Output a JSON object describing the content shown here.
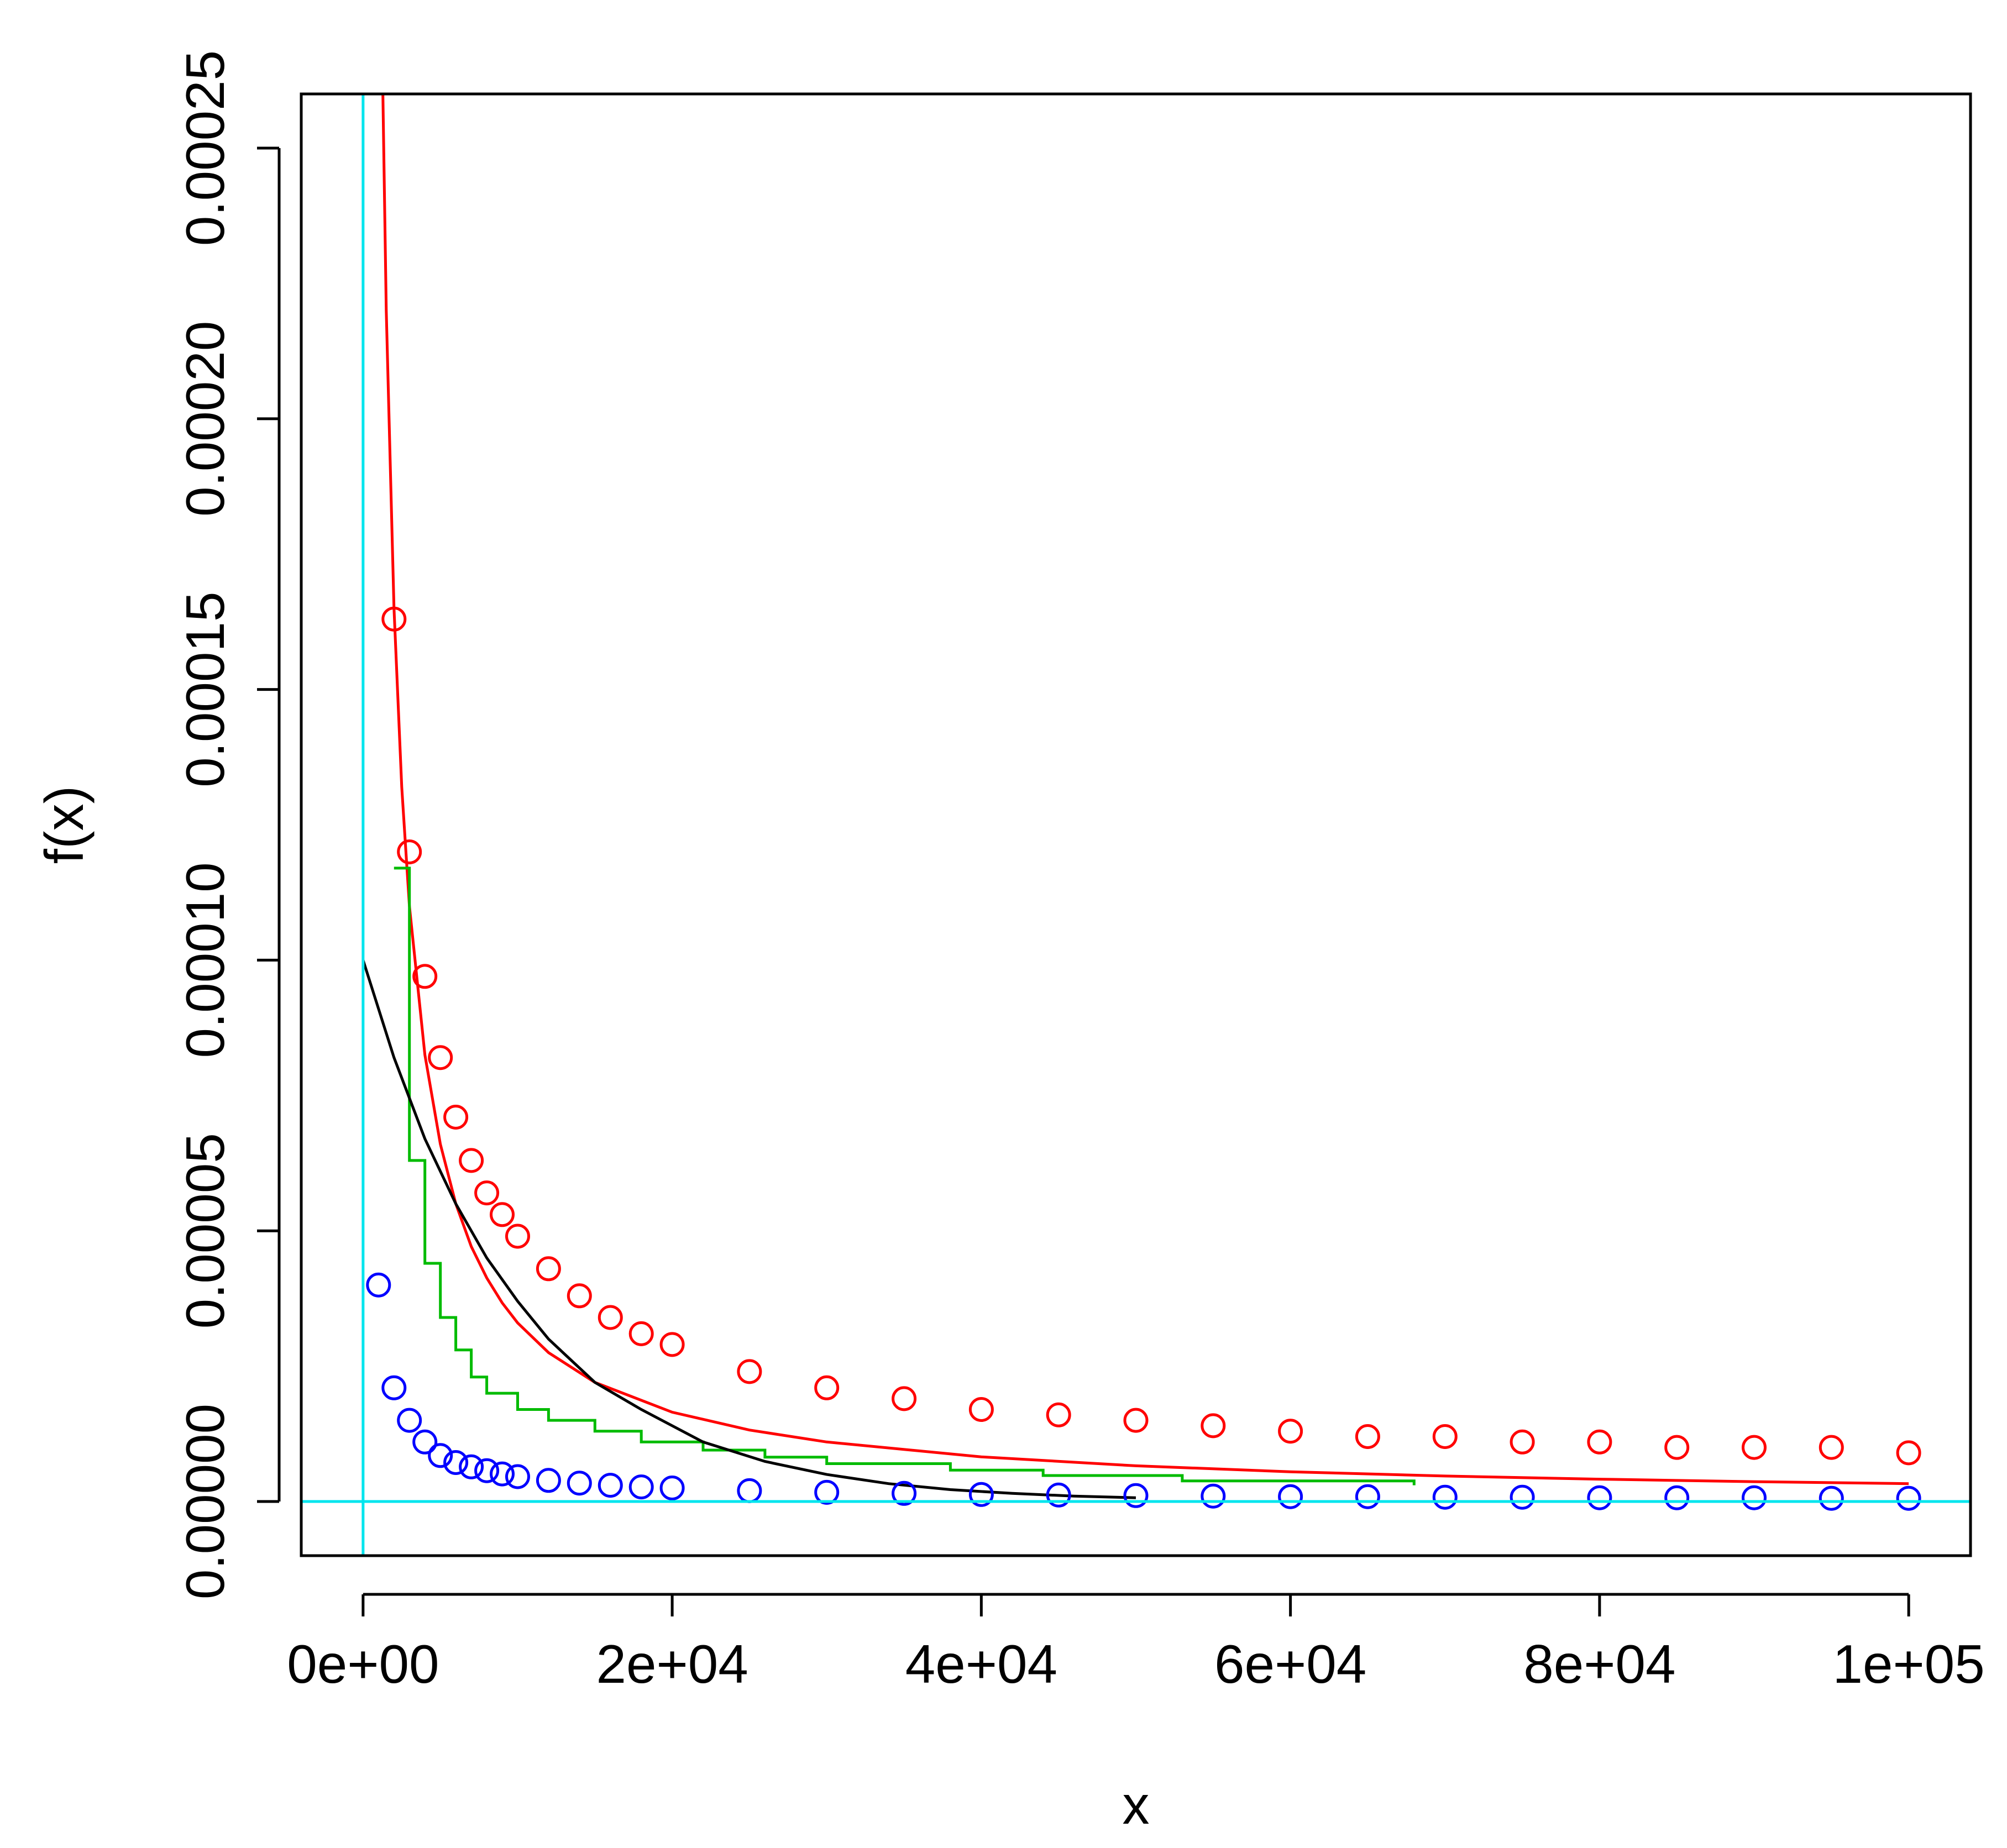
{
  "chart_data": {
    "type": "line",
    "title": "",
    "xlabel": "x",
    "ylabel": "f(x)",
    "xlim": [
      -4000,
      104000
    ],
    "ylim": [
      -1e-05,
      0.00026
    ],
    "x_ticks": [
      0,
      20000,
      40000,
      60000,
      80000,
      100000
    ],
    "x_tick_labels": [
      "0e+00",
      "2e+04",
      "4e+04",
      "6e+04",
      "8e+04",
      "1e+05"
    ],
    "y_ticks": [
      0,
      5e-05,
      0.0001,
      0.00015,
      0.0002,
      0.00025
    ],
    "y_tick_labels": [
      "0.00000",
      "0.00005",
      "0.00010",
      "0.00015",
      "0.00020",
      "0.00025"
    ],
    "grid": false,
    "legend": "none",
    "reference_lines": [
      {
        "orientation": "vertical",
        "value": 0,
        "color": "#00e5ee"
      },
      {
        "orientation": "horizontal",
        "value": 0,
        "color": "#00e5ee"
      }
    ],
    "series": [
      {
        "style": "line",
        "color": "#ff0000",
        "x": [
          1200,
          1500,
          2000,
          2500,
          3000,
          4000,
          5000,
          6000,
          7000,
          8000,
          9000,
          10000,
          12000,
          15000,
          20000,
          25000,
          30000,
          40000,
          50000,
          60000,
          70000,
          80000,
          90000,
          100000
        ],
        "values": [
          0.000275,
          0.00022,
          0.000165,
          0.000132,
          0.00011,
          8.25e-05,
          6.6e-05,
          5.5e-05,
          4.71e-05,
          4.13e-05,
          3.67e-05,
          3.3e-05,
          2.75e-05,
          2.2e-05,
          1.65e-05,
          1.32e-05,
          1.1e-05,
          8.25e-06,
          6.6e-06,
          5.5e-06,
          4.71e-06,
          4.13e-06,
          3.67e-06,
          3.3e-06
        ]
      },
      {
        "style": "points",
        "color": "#ff0000",
        "x": [
          2000,
          3000,
          4000,
          5000,
          6000,
          7000,
          8000,
          9000,
          10000,
          12000,
          14000,
          16000,
          18000,
          20000,
          25000,
          30000,
          35000,
          40000,
          45000,
          50000,
          55000,
          60000,
          65000,
          70000,
          75000,
          80000,
          85000,
          90000,
          95000,
          100000
        ],
        "values": [
          0.000163,
          0.00012,
          9.7e-05,
          8.2e-05,
          7.1e-05,
          6.3e-05,
          5.7e-05,
          5.3e-05,
          4.9e-05,
          4.3e-05,
          3.8e-05,
          3.4e-05,
          3.1e-05,
          2.9e-05,
          2.4e-05,
          2.1e-05,
          1.9e-05,
          1.7e-05,
          1.6e-05,
          1.5e-05,
          1.4e-05,
          1.3e-05,
          1.2e-05,
          1.2e-05,
          1.1e-05,
          1.1e-05,
          1e-05,
          1e-05,
          1e-05,
          9e-06
        ]
      },
      {
        "style": "step",
        "color": "#00bb00",
        "x": [
          2000,
          3000,
          4000,
          5000,
          6000,
          7000,
          8000,
          10000,
          12000,
          15000,
          18000,
          22000,
          26000,
          30000,
          38000,
          44000,
          53000,
          68000
        ],
        "values": [
          0.000117,
          6.3e-05,
          4.4e-05,
          3.4e-05,
          2.8e-05,
          2.3e-05,
          2e-05,
          1.7e-05,
          1.5e-05,
          1.3e-05,
          1.1e-05,
          9.5e-06,
          8.2e-06,
          7e-06,
          5.8e-06,
          4.8e-06,
          3.8e-06,
          3e-06
        ]
      },
      {
        "style": "line",
        "color": "#000000",
        "x": [
          0,
          2000,
          4000,
          6000,
          8000,
          10000,
          12000,
          15000,
          18000,
          22000,
          26000,
          30000,
          34000,
          38000,
          42000,
          46000,
          50000
        ],
        "values": [
          0.0001,
          8.2e-05,
          6.7e-05,
          5.5e-05,
          4.5e-05,
          3.7e-05,
          3e-05,
          2.2e-05,
          1.7e-05,
          1.1e-05,
          7.4e-06,
          5e-06,
          3.3e-06,
          2.2e-06,
          1.5e-06,
          1e-06,
          7e-07
        ]
      },
      {
        "style": "points",
        "color": "#0000ff",
        "x": [
          1000,
          2000,
          3000,
          4000,
          5000,
          6000,
          7000,
          8000,
          9000,
          10000,
          12000,
          14000,
          16000,
          18000,
          20000,
          25000,
          30000,
          35000,
          40000,
          45000,
          50000,
          55000,
          60000,
          65000,
          70000,
          75000,
          80000,
          85000,
          90000,
          95000,
          100000
        ],
        "values": [
          4e-05,
          2.1e-05,
          1.5e-05,
          1.1e-05,
          8.5e-06,
          7.2e-06,
          6.4e-06,
          5.7e-06,
          5.1e-06,
          4.6e-06,
          3.9e-06,
          3.4e-06,
          3e-06,
          2.7e-06,
          2.5e-06,
          2e-06,
          1.7e-06,
          1.5e-06,
          1.3e-06,
          1.2e-06,
          1.1e-06,
          1e-06,
          9e-07,
          9e-07,
          8e-07,
          8e-07,
          7e-07,
          7e-07,
          7e-07,
          6e-07,
          6e-07
        ]
      }
    ]
  }
}
